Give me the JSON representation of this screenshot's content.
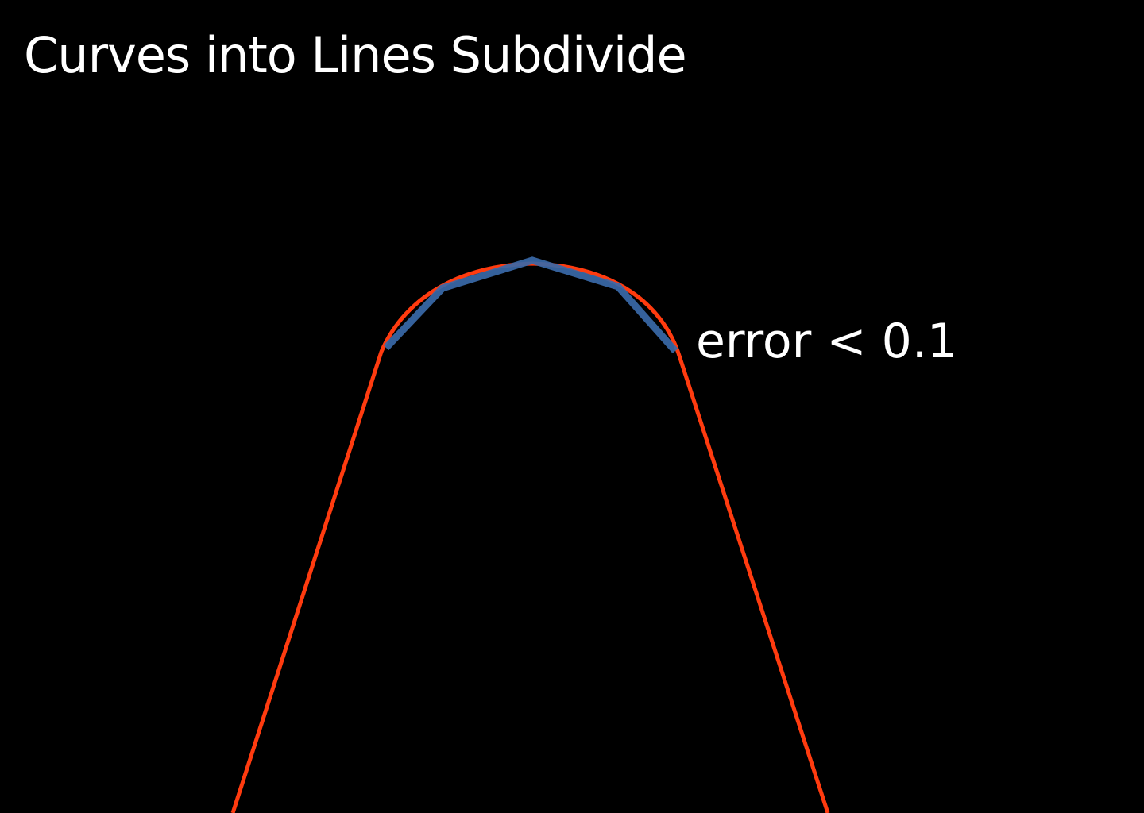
{
  "slide": {
    "title": "Curves into Lines Subdivide",
    "annotation": "error < 0.1"
  },
  "colors": {
    "background": "#000000",
    "text": "#ffffff",
    "curve": "#ff3b0f",
    "polyline": "#3a69a8"
  },
  "icons": []
}
